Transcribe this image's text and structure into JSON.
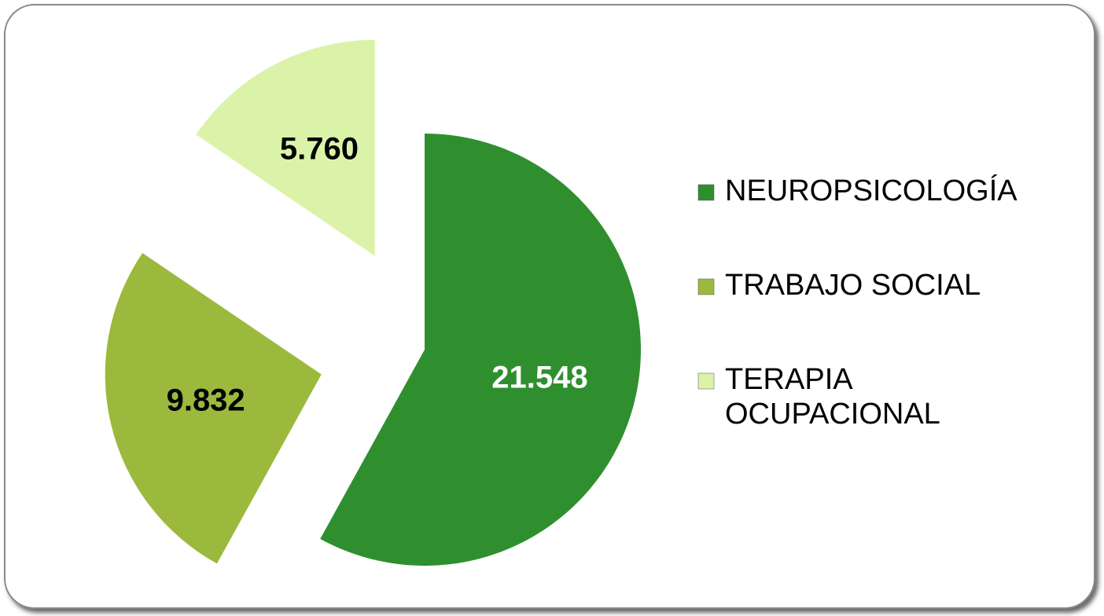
{
  "chart_data": {
    "type": "pie",
    "categories": [
      "NEUROPSICOLOGÍA",
      "TRABAJO SOCIAL",
      "TERAPIA OCUPACIONAL"
    ],
    "values": [
      21548,
      9832,
      5760
    ],
    "value_labels": [
      "21.548",
      "9.832",
      "5.760"
    ],
    "colors": [
      "#2f8f2f",
      "#9bb93c",
      "#dbf3a8"
    ],
    "label_colors": [
      "#ffffff",
      "#000000",
      "#000000"
    ],
    "legend": "right"
  }
}
